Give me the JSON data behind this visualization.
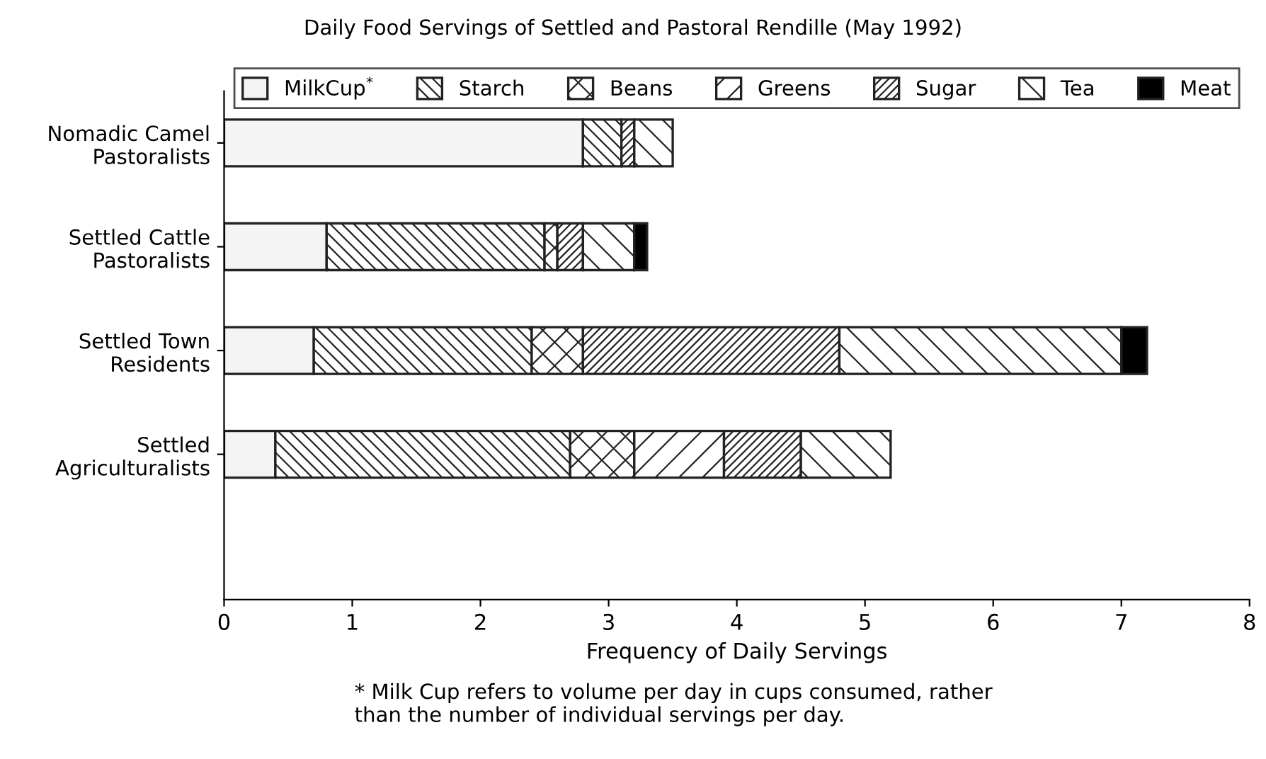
{
  "chart_data": {
    "type": "bar",
    "orientation": "horizontal",
    "stacked": true,
    "title": "Daily Food Servings of Settled and Pastoral Rendille (May 1992)",
    "xlabel": "Frequency of Daily Servings",
    "categories": [
      "Nomadic Camel\nPastoralists",
      "Settled Cattle\nPastoralists",
      "Settled Town\nResidents",
      "Settled\nAgriculturalists"
    ],
    "series": [
      {
        "name": "MilkCup$^{*}$",
        "color": "#f4f4f4",
        "values": [
          2.8,
          0.8,
          0.7,
          0.4
        ]
      },
      {
        "name": "Starch",
        "color": "#222222",
        "values": [
          0.3,
          1.7,
          1.7,
          2.3
        ]
      },
      {
        "name": "Beans",
        "color": "#222222",
        "values": [
          null,
          0.1,
          0.4,
          0.5
        ]
      },
      {
        "name": "Greens",
        "color": "#222222",
        "values": [
          null,
          null,
          null,
          0.7
        ]
      },
      {
        "name": "Sugar",
        "color": "#222222",
        "values": [
          0.1,
          0.2,
          2.0,
          0.6
        ]
      },
      {
        "name": "Tea",
        "color": "#222222",
        "values": [
          0.3,
          0.4,
          2.2,
          0.7
        ]
      },
      {
        "name": "Meat",
        "color": "#000000",
        "values": [
          null,
          0.1,
          0.2,
          null
        ]
      }
    ],
    "xlim": [
      0,
      8
    ],
    "xticks": [
      0,
      1,
      2,
      3,
      4,
      5,
      6,
      7,
      8
    ],
    "grid": false,
    "legend": "top",
    "annotations": [
      "* Milk Cup refers to volume per day in cups consumed, rather\nthan the number of individual servings per day."
    ]
  }
}
